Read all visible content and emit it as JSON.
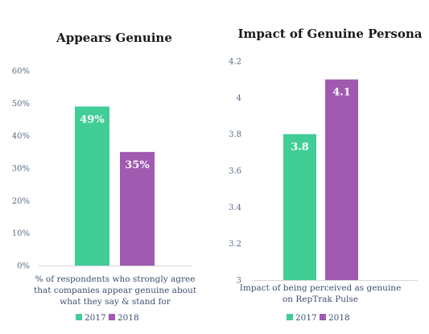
{
  "chart_data": [
    {
      "type": "bar",
      "title": "Appears Genuine",
      "xlabel_lines": [
        "% of respondents who strongly agree",
        "that companies appear genuine about",
        "what they say & stand for"
      ],
      "ylim": [
        0,
        60
      ],
      "ytick_labels": [
        "0%",
        "10%",
        "20%",
        "30%",
        "40%",
        "50%",
        "60%"
      ],
      "series": [
        {
          "name": "2017",
          "values": [
            49
          ],
          "data_label": "49%"
        },
        {
          "name": "2018",
          "values": [
            35
          ],
          "data_label": "35%"
        }
      ],
      "legend": "bottom",
      "grid": false
    },
    {
      "type": "bar",
      "title": "Impact of Genuine Persona",
      "xlabel_lines": [
        "Impact of being perceived as genuine",
        "on RepTrak Pulse"
      ],
      "ylim": [
        3,
        4.2
      ],
      "ytick_labels": [
        "3",
        "3.2",
        "3.4",
        "3.6",
        "3.8",
        "4",
        "4.2"
      ],
      "series": [
        {
          "name": "2017",
          "values": [
            3.8
          ],
          "data_label": "3.8"
        },
        {
          "name": "2018",
          "values": [
            4.1
          ],
          "data_label": "4.1"
        }
      ],
      "legend": "bottom",
      "grid": false
    }
  ],
  "colors": {
    "2017": "#41cd96",
    "2018": "#a05ab0"
  }
}
